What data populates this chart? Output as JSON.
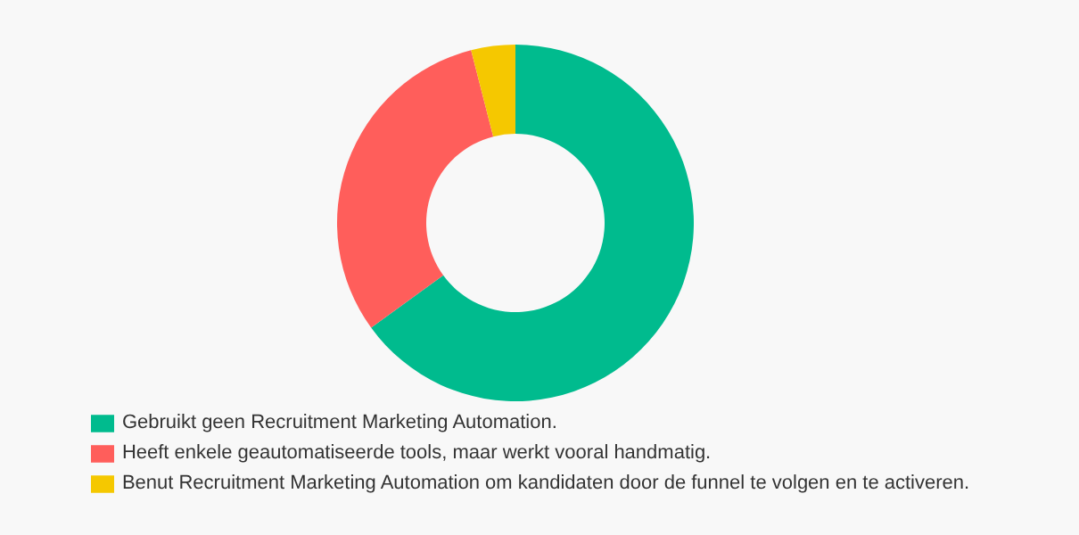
{
  "chart_data": {
    "type": "donut",
    "categories": [
      "Gebruikt geen Recruitment Marketing Automation.",
      "Heeft enkele geautomatiseerde tools, maar werkt vooral handmatig.",
      "Benut Recruitment Marketing Automation om kandidaten door de funnel te volgen en te activeren."
    ],
    "values": [
      65,
      31,
      4
    ],
    "colors": [
      "#00bb8e",
      "#ff5e5b",
      "#f5c800"
    ],
    "legend": "bottom"
  }
}
